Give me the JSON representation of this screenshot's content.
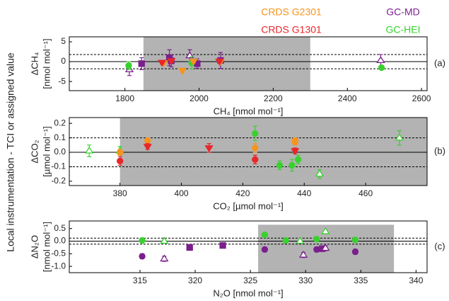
{
  "y_label": "Local instrumentation - TCI or assigned value",
  "legend": [
    {
      "name": "CRDS G2301",
      "color": "#f7941d"
    },
    {
      "name": "GC-MD",
      "color": "#7b1f8c"
    },
    {
      "name": "CRDS G1301",
      "color": "#e8262a"
    },
    {
      "name": "GC-HEI",
      "color": "#39d12e"
    }
  ],
  "chart_data": [
    {
      "type": "scatter",
      "panel": "(a)",
      "y_title": "ΔCH₄",
      "y_unit": "[nmol mol⁻¹]",
      "x_title": "CH₄ [nmol mol⁻¹]",
      "xlim": [
        1650,
        2615
      ],
      "xticks": [
        1800,
        2000,
        2200,
        2400,
        2600
      ],
      "ylim": [
        -7.3,
        6.25
      ],
      "yticks": [
        -5,
        0,
        5
      ],
      "shade_x": [
        1850,
        2300
      ],
      "ref_line": 0,
      "dashed_y": [
        -1.8,
        1.8
      ],
      "series": [
        {
          "color": "#7b1f8c",
          "marker": "square",
          "filled": true,
          "x": [
            1845,
            1920,
            1925,
            1995,
            2058
          ],
          "values": [
            -0.5,
            1.0,
            0.2,
            -0.5,
            0.3
          ],
          "errors": [
            1.5,
            2.0,
            1.5,
            1.2,
            2.0
          ]
        },
        {
          "color": "#7b1f8c",
          "marker": "triangle-up",
          "filled": false,
          "x": [
            1812,
            1975,
            2490
          ],
          "values": [
            -2.0,
            1.5,
            0.3
          ],
          "errors": [
            1.5,
            1.5,
            1.5
          ]
        },
        {
          "color": "#39d12e",
          "marker": "circle",
          "filled": true,
          "x": [
            1810,
            1980,
            2492
          ],
          "values": [
            -1.0,
            -0.3,
            -1.5
          ],
          "errors": [
            1.0,
            1.5,
            0.5
          ]
        },
        {
          "color": "#f7941d",
          "marker": "triangle-down",
          "filled": true,
          "x": [
            1905,
            1955,
            1985,
            2058
          ],
          "values": [
            -0.3,
            -2.2,
            0.1,
            0.1
          ],
          "errors": [
            0.4,
            0.5,
            0.4,
            0.4
          ]
        },
        {
          "color": "#e8262a",
          "marker": "triangle-down",
          "filled": true,
          "x": [
            1900,
            1925,
            2055
          ],
          "values": [
            -0.2,
            0.2,
            0.1
          ],
          "errors": [
            0.4,
            0.4,
            0.4
          ]
        }
      ]
    },
    {
      "type": "scatter",
      "panel": "(b)",
      "y_title": "ΔCO₂",
      "y_unit": "[µmol mol⁻¹]",
      "x_title": "CO₂ [µmol mol⁻¹]",
      "xlim": [
        363.5,
        480
      ],
      "xticks": [
        380,
        400,
        420,
        440,
        460
      ],
      "ylim": [
        -0.23,
        0.24
      ],
      "yticks": [
        -0.2,
        -0.1,
        {
          "value": 0,
          "label": "0.0"
        },
        0.1,
        0.2
      ],
      "shade_x": [
        380,
        480
      ],
      "ref_line": 0,
      "dashed_y": [
        -0.1,
        0.1
      ],
      "series": [
        {
          "color": "#39d12e",
          "marker": "triangle-up",
          "filled": false,
          "x": [
            370,
            380,
            445,
            471
          ],
          "values": [
            0.01,
            0.01,
            -0.15,
            0.1
          ],
          "errors": [
            0.04,
            0.03,
            0.03,
            0.05
          ]
        },
        {
          "color": "#f7941d",
          "marker": "circle",
          "filled": true,
          "x": [
            380,
            389,
            424,
            437,
            437
          ],
          "values": [
            0.0,
            0.08,
            0.03,
            0.08,
            0.07
          ],
          "errors": [
            0.02,
            0.02,
            0.03,
            0.02,
            0.02
          ]
        },
        {
          "color": "#e8262a",
          "marker": "triangle-down",
          "filled": true,
          "x": [
            389,
            409,
            437
          ],
          "values": [
            0.04,
            0.03,
            0.01
          ],
          "errors": [
            0.02,
            0.03,
            0.02
          ]
        },
        {
          "color": "#e8262a",
          "marker": "circle",
          "filled": true,
          "x": [
            380,
            424
          ],
          "values": [
            -0.06,
            -0.05
          ],
          "errors": [
            0.03,
            0.03
          ]
        },
        {
          "color": "#39d12e",
          "marker": "circle",
          "filled": true,
          "x": [
            424,
            432,
            436,
            438
          ],
          "values": [
            0.13,
            -0.09,
            -0.09,
            -0.05
          ],
          "errors": [
            0.05,
            0.03,
            0.04,
            0.03
          ]
        }
      ]
    },
    {
      "type": "scatter",
      "panel": "(c)",
      "y_title": "ΔN₂O",
      "y_unit": "[nmol mol⁻¹]",
      "x_title": "N₂O [nmol mol⁻¹]",
      "xlim": [
        308.6,
        341
      ],
      "xticks": [
        315,
        320,
        325,
        330,
        335,
        340
      ],
      "ylim": [
        -1.25,
        0.8
      ],
      "yticks": [
        {
          "value": -1,
          "label": "-1.0"
        },
        -0.5,
        {
          "value": 0,
          "label": "0.0"
        },
        0.5
      ],
      "shade_x": [
        325.7,
        338
      ],
      "shade_y": [
        -1.25,
        0.65
      ],
      "ref_line": 0,
      "dashed_y": [
        -0.12,
        0.12
      ],
      "series": [
        {
          "color": "#7b1f8c",
          "marker": "circle",
          "filled": true,
          "x": [
            315.2,
            326.3,
            331,
            334.5
          ],
          "values": [
            -0.6,
            -0.33,
            -0.33,
            -0.42
          ],
          "errors": [
            0.1,
            0.1,
            0.1,
            0.1
          ]
        },
        {
          "color": "#7b1f8c",
          "marker": "square",
          "filled": true,
          "x": [
            319.5,
            322.5,
            331.5
          ],
          "values": [
            -0.25,
            -0.17,
            -0.3
          ],
          "errors": [
            0.08,
            0.08,
            0.08
          ]
        },
        {
          "color": "#7b1f8c",
          "marker": "triangle-up",
          "filled": false,
          "x": [
            317.2,
            329.8,
            331.8
          ],
          "values": [
            -0.7,
            -0.55,
            -0.28
          ],
          "errors": [
            0.1,
            0.1,
            0.1
          ]
        },
        {
          "color": "#39d12e",
          "marker": "circle",
          "filled": true,
          "x": [
            315.2,
            326.3,
            328.2,
            331,
            334.5
          ],
          "values": [
            0.03,
            0.25,
            0.03,
            0.08,
            0.05
          ],
          "errors": [
            0.06,
            0.06,
            0.05,
            0.05,
            0.05
          ]
        },
        {
          "color": "#39d12e",
          "marker": "triangle-up",
          "filled": false,
          "x": [
            317.2,
            329.5,
            331.8
          ],
          "values": [
            0.0,
            0.0,
            0.38
          ],
          "errors": [
            0.05,
            0.05,
            0.05
          ]
        }
      ]
    }
  ]
}
